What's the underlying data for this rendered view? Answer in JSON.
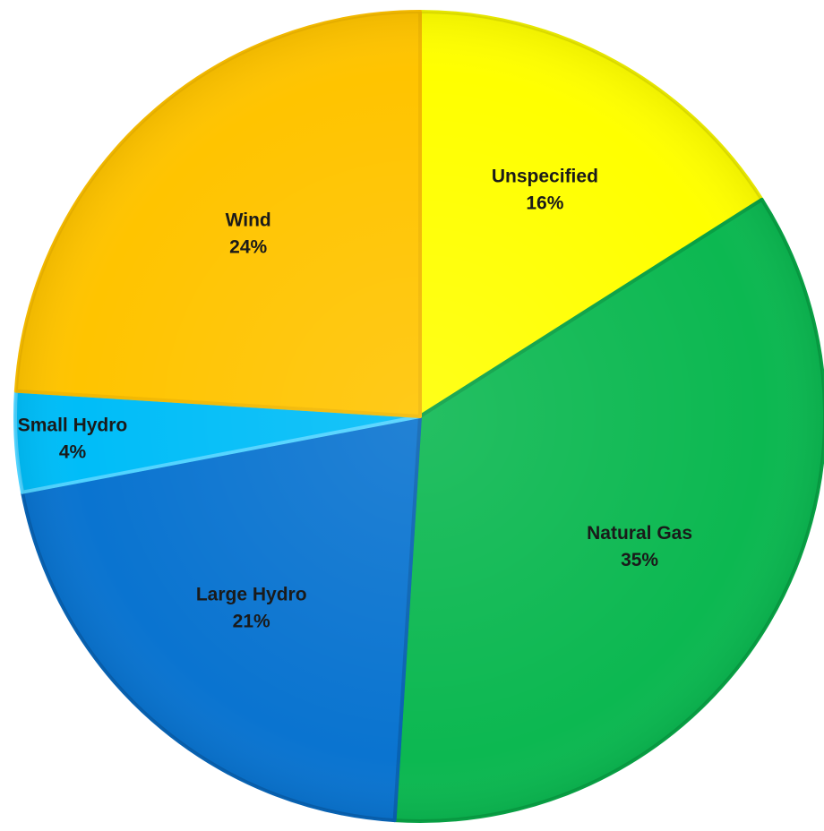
{
  "chart_data": {
    "type": "pie",
    "start_angle_deg": 0,
    "direction": "clockwise",
    "slices": [
      {
        "label": "Unspecified",
        "value": 16,
        "value_label": "16%",
        "color": "#FFFF00",
        "edge": "#E6E600"
      },
      {
        "label": "Natural Gas",
        "value": 35,
        "value_label": "35%",
        "color": "#0CB851",
        "edge": "#08A044"
      },
      {
        "label": "Large Hydro",
        "value": 21,
        "value_label": "21%",
        "color": "#0A74D0",
        "edge": "#0862B2"
      },
      {
        "label": "Small Hydro",
        "value": 4,
        "value_label": "4%",
        "color": "#00BDF8",
        "edge": "#4FD3FF"
      },
      {
        "label": "Wind",
        "value": 24,
        "value_label": "24%",
        "color": "#FFC400",
        "edge": "#F2B800"
      }
    ]
  }
}
